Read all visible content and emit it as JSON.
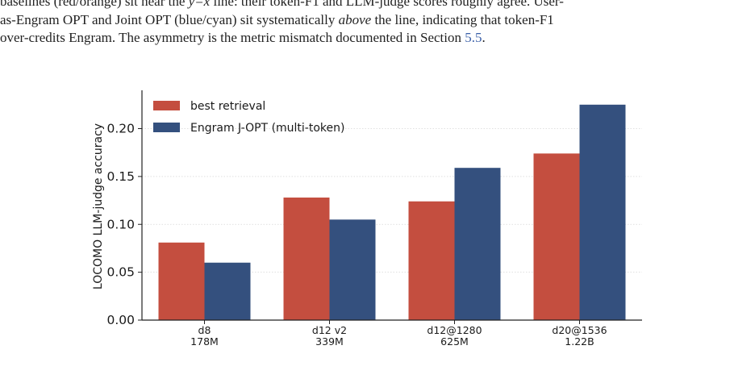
{
  "paragraph": {
    "line1_pre": "baselines (red/orange) sit near the ",
    "line1_math": "y=x",
    "line1_post": " line: their token-F1 and LLM-judge scores roughly agree. User-",
    "line2_pre": "as-Engram OPT and Joint OPT (blue/cyan) sit systematically ",
    "line2_em": "above",
    "line2_post": " the line, indicating that token-F1",
    "line3_pre": "over-credits Engram. The asymmetry is the metric mismatch documented in Section ",
    "line3_ref": "5.5",
    "line3_post": "."
  },
  "chart_data": {
    "type": "bar",
    "title": "",
    "xlabel": "",
    "ylabel": "LOCOMO LLM-judge accuracy",
    "categories": [
      {
        "line1": "d8",
        "line2": "178M"
      },
      {
        "line1": "d12 v2",
        "line2": "339M"
      },
      {
        "line1": "d12@1280",
        "line2": "625M"
      },
      {
        "line1": "d20@1536",
        "line2": "1.22B"
      }
    ],
    "series": [
      {
        "name": "best retrieval",
        "color": "#c44e3f",
        "values": [
          0.081,
          0.128,
          0.124,
          0.174
        ]
      },
      {
        "name": "Engram J-OPT (multi-token)",
        "color": "#34507e",
        "values": [
          0.06,
          0.105,
          0.159,
          0.225
        ]
      }
    ],
    "ylim": [
      0,
      0.24
    ],
    "yticks": [
      "0.00",
      "0.05",
      "0.10",
      "0.15",
      "0.20"
    ],
    "grid": "horizontal dotted",
    "legend": "top-left"
  }
}
